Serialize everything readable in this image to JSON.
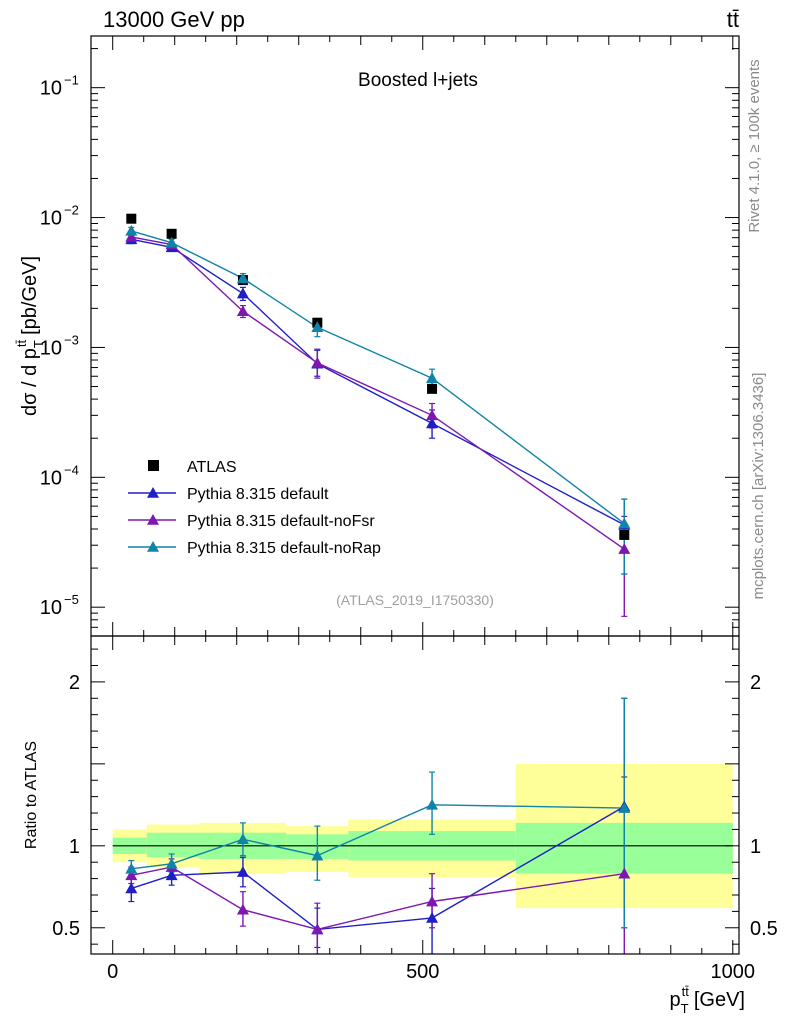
{
  "header": {
    "left": "13000 GeV pp",
    "right": "tt̄"
  },
  "side_labels": {
    "rivet": "Rivet 4.1.0, ≥ 100k events",
    "mcplots": "mcplots.cern.ch [arXiv:1306.3436]"
  },
  "chart_data": [
    {
      "type": "line",
      "scale": "log",
      "title": "Boosted l+jets",
      "watermark": "(ATLAS_2019_I1750330)",
      "ylabel": "dσ / d p_T^{tt̄} [pb/GeV]",
      "ylabel_text": "dσ / d p",
      "ylabel_sub": "T",
      "ylabel_sup": "tt̄",
      "ylabel_unit": "[pb/GeV]",
      "xlim": [
        -35,
        1010
      ],
      "ylim": [
        6e-06,
        0.25
      ],
      "yticks": [
        {
          "value": 0.1,
          "mant": "10",
          "exp": "−1"
        },
        {
          "value": 0.01,
          "mant": "10",
          "exp": "−2"
        },
        {
          "value": 0.001,
          "mant": "10",
          "exp": "−3"
        },
        {
          "value": 0.0001,
          "mant": "10",
          "exp": "−4"
        },
        {
          "value": 1e-05,
          "mant": "10",
          "exp": "−5"
        }
      ],
      "legend": [
        "ATLAS",
        "Pythia 8.315 default",
        "Pythia 8.315 default-noFsr",
        "Pythia 8.315 default-noRap"
      ],
      "data": {
        "name": "ATLAS",
        "x": [
          30,
          95,
          210,
          330,
          515,
          825
        ],
        "y": [
          0.0098,
          0.0075,
          0.0033,
          0.00155,
          0.00048,
          3.6e-05
        ]
      },
      "series": [
        {
          "name": "Pythia 8.315 default",
          "color": "#1f1fc8",
          "x": [
            30,
            95,
            210,
            330,
            515,
            825
          ],
          "y": [
            0.0068,
            0.0059,
            0.0026,
            0.00075,
            0.00026,
            4.3e-05
          ],
          "err_lo": [
            0.0063,
            0.0056,
            0.0023,
            0.0006,
            0.0002,
            1.8e-05
          ],
          "err_hi": [
            0.0073,
            0.0062,
            0.0029,
            0.00095,
            0.00033,
            6.8e-05
          ]
        },
        {
          "name": "Pythia 8.315 default-noFsr",
          "color": "#7d17b0",
          "x": [
            30,
            95,
            210,
            330,
            515,
            825
          ],
          "y": [
            0.0071,
            0.0062,
            0.0019,
            0.00076,
            0.0003,
            2.8e-05
          ],
          "err_lo": [
            0.0067,
            0.0059,
            0.0017,
            0.00058,
            0.00024,
            8.5e-06
          ],
          "err_hi": [
            0.0075,
            0.0065,
            0.0021,
            0.00097,
            0.00037,
            5e-05
          ]
        },
        {
          "name": "Pythia 8.315 default-noRap",
          "color": "#0f84a8",
          "x": [
            30,
            95,
            210,
            330,
            515,
            825
          ],
          "y": [
            0.0079,
            0.0064,
            0.0034,
            0.00143,
            0.00058,
            4.4e-05
          ],
          "err_lo": [
            0.0074,
            0.0061,
            0.0031,
            0.00121,
            0.00048,
            1.8e-05
          ],
          "err_hi": [
            0.0084,
            0.0068,
            0.0037,
            0.00167,
            0.00068,
            6.8e-05
          ]
        }
      ]
    },
    {
      "type": "line",
      "scale": "linear",
      "ylabel": "Ratio to ATLAS",
      "xlabel": "p_T^{tt̄} [GeV]",
      "xlabel_text": "p",
      "xlabel_sub": "T",
      "xlabel_sup": "tt̄",
      "xlabel_unit": "[GeV]",
      "xlim": [
        -35,
        1010
      ],
      "ylim": [
        0.34,
        2.28
      ],
      "xticks": [
        {
          "value": 0,
          "label": "0"
        },
        {
          "value": 500,
          "label": "500"
        },
        {
          "value": 1000,
          "label": "1000"
        }
      ],
      "yticks": [
        {
          "value": 0.5,
          "label": "0.5"
        },
        {
          "value": 1,
          "label": "1"
        },
        {
          "value": 2,
          "label": "2"
        }
      ],
      "bands": {
        "bins": [
          [
            0,
            55
          ],
          [
            55,
            140
          ],
          [
            140,
            280
          ],
          [
            280,
            380
          ],
          [
            380,
            650
          ],
          [
            650,
            1000
          ]
        ],
        "yellow": [
          [
            0.9,
            1.1
          ],
          [
            0.87,
            1.13
          ],
          [
            0.83,
            1.14
          ],
          [
            0.84,
            1.12
          ],
          [
            0.81,
            1.16
          ],
          [
            0.62,
            1.5
          ]
        ],
        "green": [
          [
            0.95,
            1.05
          ],
          [
            0.93,
            1.08
          ],
          [
            0.92,
            1.08
          ],
          [
            0.92,
            1.07
          ],
          [
            0.91,
            1.09
          ],
          [
            0.83,
            1.14
          ]
        ]
      },
      "series": [
        {
          "name": "Pythia 8.315 default",
          "color": "#1f1fc8",
          "x": [
            30,
            95,
            210,
            330,
            515,
            825
          ],
          "y": [
            0.74,
            0.82,
            0.84,
            0.49,
            0.56,
            1.24
          ],
          "err_lo": [
            0.66,
            0.76,
            0.75,
            0.38,
            0.34,
            0.5
          ],
          "err_hi": [
            0.82,
            0.88,
            0.93,
            0.62,
            0.74,
            1.9
          ]
        },
        {
          "name": "Pythia 8.315 default-noFsr",
          "color": "#7d17b0",
          "x": [
            30,
            95,
            210,
            330,
            515,
            825
          ],
          "y": [
            0.82,
            0.87,
            0.61,
            0.49,
            0.66,
            0.83
          ],
          "err_lo": [
            0.77,
            0.82,
            0.51,
            0.34,
            0.5,
            0.3
          ],
          "err_hi": [
            0.87,
            0.92,
            0.72,
            0.65,
            0.83,
            1.42
          ]
        },
        {
          "name": "Pythia 8.315 default-noRap",
          "color": "#0f84a8",
          "x": [
            30,
            95,
            210,
            330,
            515,
            825
          ],
          "y": [
            0.86,
            0.89,
            1.04,
            0.94,
            1.25,
            1.23
          ],
          "err_lo": [
            0.81,
            0.84,
            0.94,
            0.79,
            1.07,
            0.5
          ],
          "err_hi": [
            0.91,
            0.95,
            1.14,
            1.12,
            1.45,
            1.9
          ]
        }
      ]
    }
  ]
}
